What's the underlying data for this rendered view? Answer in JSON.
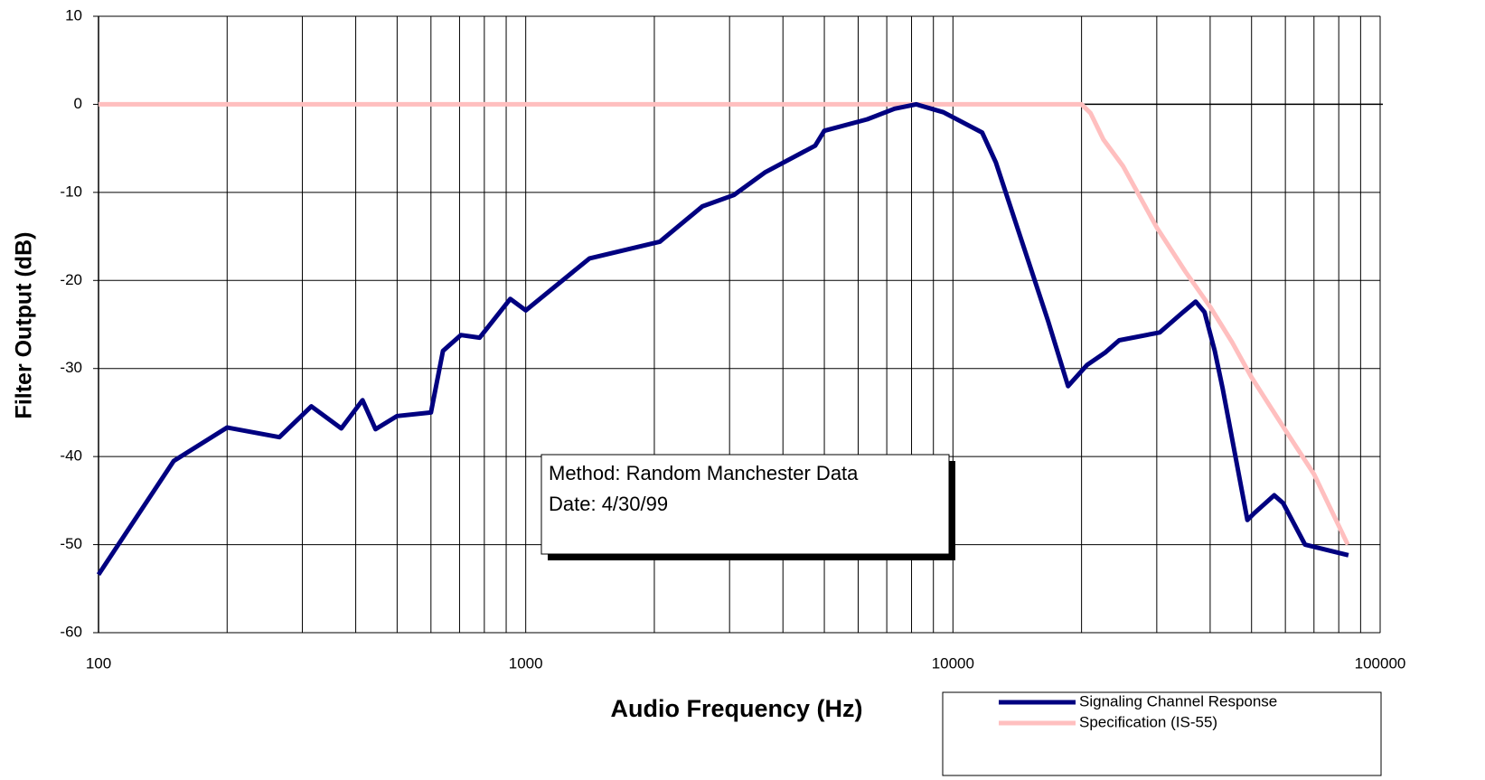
{
  "chart_data": {
    "type": "line",
    "x_label": "Audio Frequency (Hz)",
    "y_label": "Filter Output (dB)",
    "annotation": [
      "Method: Random Manchester Data",
      "Date: 4/30/99"
    ],
    "log_x": true,
    "grid": true,
    "legend": "bottom-right",
    "xlim": [
      100,
      100000
    ],
    "xticks": [
      100,
      1000,
      10000,
      100000
    ],
    "ylim": [
      -60,
      10
    ],
    "yticks": [
      10,
      0,
      -10,
      -20,
      -30,
      -40,
      -50,
      -60
    ],
    "series": [
      {
        "name": "Signaling Channel Response",
        "color": "#000080",
        "x": [
          100,
          150,
          200,
          265,
          315,
          370,
          415,
          445,
          500,
          600,
          640,
          705,
          780,
          920,
          1000,
          1410,
          2060,
          2590,
          3070,
          3640,
          4760,
          5000,
          6300,
          7300,
          8200,
          9500,
          11700,
          12600,
          16700,
          18600,
          20600,
          22700,
          24500,
          30500,
          34400,
          37000,
          38800,
          41000,
          42800,
          48900,
          50800,
          56500,
          59300,
          66700,
          84300
        ],
        "values": [
          -53.4,
          -40.5,
          -36.7,
          -37.8,
          -34.3,
          -36.8,
          -33.6,
          -36.9,
          -35.4,
          -35.0,
          -28.0,
          -26.2,
          -26.5,
          -22.1,
          -23.4,
          -17.5,
          -15.6,
          -11.6,
          -10.3,
          -7.7,
          -4.7,
          -3.0,
          -1.7,
          -0.5,
          0,
          -0.9,
          -3.2,
          -6.6,
          -24.6,
          -32.0,
          -29.6,
          -28.2,
          -26.8,
          -25.9,
          -23.7,
          -22.4,
          -23.6,
          -28.0,
          -32.3,
          -47.2,
          -46.4,
          -44.4,
          -45.3,
          -50.0,
          -51.2
        ]
      },
      {
        "name": "Specification (IS-55)",
        "color": "#ffbfbf",
        "x": [
          100,
          20000,
          21000,
          22500,
          25000,
          30000,
          35000,
          40000,
          45000,
          50000,
          60000,
          70000,
          84000
        ],
        "values": [
          0,
          0,
          -1,
          -4,
          -7,
          -14,
          -19,
          -23,
          -27,
          -31,
          -37,
          -42,
          -50
        ]
      }
    ]
  }
}
